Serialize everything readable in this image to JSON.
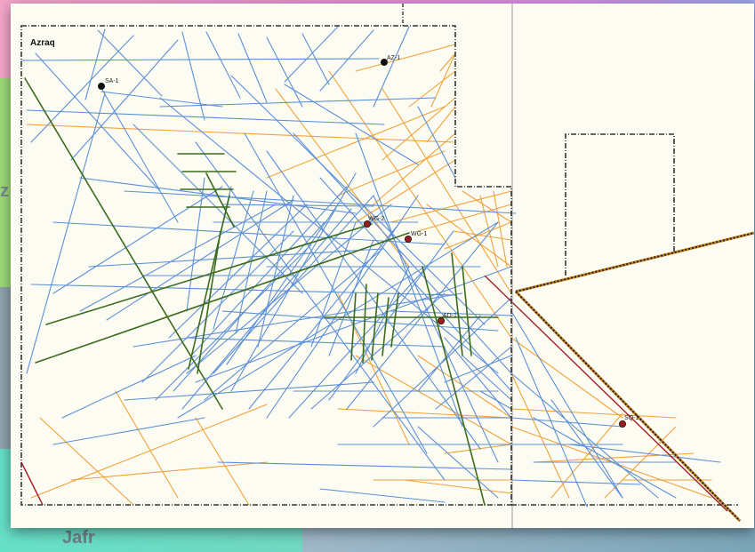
{
  "map": {
    "block_name": "Azraq",
    "background_labels": {
      "jafr": "Jafr",
      "z": "z"
    },
    "colors": {
      "seismic_blue": "#5b8fd6",
      "seismic_orange": "#f0a23a",
      "fault_green": "#3b6b1d",
      "boundary_red": "#a31f2a",
      "boundary": "#222222"
    },
    "wells": [
      {
        "name": "AZ-1",
        "status": "dry",
        "color": "#111111"
      },
      {
        "name": "SA-1",
        "status": "dry",
        "color": "#111111"
      },
      {
        "name": "WG-2",
        "status": "shows",
        "color": "#9c1c1c"
      },
      {
        "name": "WG-1",
        "status": "shows",
        "color": "#9c1c1c"
      },
      {
        "name": "AD-1",
        "status": "shows",
        "color": "#9c1c1c"
      },
      {
        "name": "SQ-1",
        "status": "shows",
        "color": "#9c1c1c"
      }
    ]
  }
}
